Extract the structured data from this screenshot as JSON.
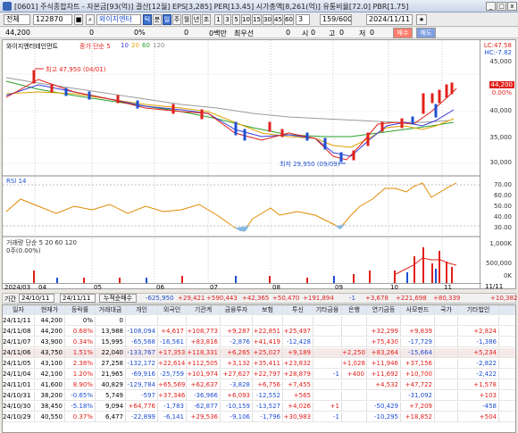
{
  "window": {
    "title": "[0601] 주식종합차트 - 자본금[93(억)] 결산[12월] EPS[3,285] PER[13.45] 시가총액[8,261(억)] 유통비율[72.0] PBR[1.75]",
    "minimize_label": "_",
    "maximize_label": "□",
    "close_label": "x"
  },
  "toolbar": {
    "market_value": "전체",
    "code_value": "122870",
    "lock_label": "■",
    "stock_name": "와이지엔터",
    "period_buttons": [
      "틱",
      "분",
      "일",
      "주",
      "월",
      "년",
      "초"
    ],
    "minute_buttons": [
      "1",
      "3",
      "5",
      "10",
      "15",
      "30",
      "45",
      "60"
    ],
    "minute_extra": "3",
    "count_value": "159/600",
    "date_value": "2024/11/11",
    "fav_label": "★"
  },
  "quote": {
    "price": "44,200",
    "change": "0",
    "change_pct": "0%",
    "volume": "0",
    "volume_unit": "0백만",
    "best_label": "최우선",
    "best_value": "0",
    "open_label": "시",
    "open_value": "0",
    "high_label": "고",
    "high_value": "0",
    "low_label": "저",
    "low_value": "0",
    "buy_label": "매수",
    "sell_label": "매도"
  },
  "chart": {
    "header_name": "와이지엔터테인먼트",
    "ma_legend": [
      "종가 단순 5",
      "10",
      "20",
      "60",
      "120"
    ],
    "ma_colors": [
      "#e0201b",
      "#3a3ad9",
      "#e0a000",
      "#2aa02a",
      "#888888"
    ],
    "high_annotation": "최고 47,950 (04/01)",
    "low_annotation": "최저 29,950 (09/09)",
    "lc_label": "LC:47.58",
    "hc_label": "HC:-7.82",
    "price_tag": "44,200",
    "price_tag2": "0.00%",
    "y_ticks": [
      "45,000",
      "40,000",
      "35,000",
      "30,000"
    ],
    "x_months": [
      "2024/03",
      "04",
      "05",
      "06",
      "07",
      "08",
      "09",
      "10",
      "11",
      "11/11"
    ],
    "rsi_label": "RSI 14",
    "rsi_ticks": [
      "70.00",
      "60.00",
      "50.00",
      "40.00",
      "30.00"
    ],
    "vol_label": "거래량 단순 5 20 60 120",
    "vol_sub": "0주(0.00%)",
    "vol_ticks": [
      "1,000K",
      "500,000",
      "0K"
    ]
  },
  "filter": {
    "period_label": "기간",
    "from_date": "24/10/11",
    "to_date": "24/11/11",
    "mode_label": "누적순매수",
    "sums": [
      "-625,950",
      "+29,421",
      "+590,443",
      "+42,365",
      "+50,470",
      "+191,894",
      "-1",
      "+3,678",
      "+221,698",
      "+80,339",
      "+10,382"
    ]
  },
  "table": {
    "headers": [
      "일자",
      "현재가",
      "등락률",
      "거래대금",
      "개인",
      "외국인",
      "기관계",
      "금융투자",
      "보험",
      "투신",
      "기타금융",
      "은행",
      "연기금등",
      "사모펀드",
      "국가",
      "기타법인"
    ],
    "rows": [
      [
        "24/11/11",
        "44,200",
        "0%",
        "0",
        "",
        "",
        "",
        "",
        "",
        "",
        "",
        "",
        "",
        "",
        "",
        ""
      ],
      [
        "24/11/08",
        "44,200",
        "0.68%",
        "13,988",
        "-108,094",
        "+4,617",
        "+108,773",
        "+9,287",
        "+22,851",
        "+25,497",
        "",
        "",
        "+32,299",
        "+9,839",
        "",
        "+2,824"
      ],
      [
        "24/11/07",
        "43,900",
        "0.34%",
        "15,995",
        "-65,568",
        "-16,561",
        "+83,816",
        "-2,876",
        "+41,419",
        "-12,428",
        "",
        "",
        "+75,430",
        "-17,729",
        "",
        "-1,386"
      ],
      [
        "24/11/06",
        "43,750",
        "1.51%",
        "22,040",
        "-133,767",
        "+17,353",
        "+118,331",
        "+6,265",
        "+25,027",
        "+9,189",
        "",
        "+2,250",
        "+83,264",
        "-15,664",
        "",
        "+5,234"
      ],
      [
        "24/11/05",
        "43,100",
        "2.38%",
        "27,258",
        "-132,172",
        "+22,614",
        "+112,505",
        "+3,132",
        "+35,411",
        "+23,832",
        "",
        "+1,028",
        "+11,946",
        "+37,156",
        "",
        "-2,822"
      ],
      [
        "24/11/04",
        "42,100",
        "1.20%",
        "21,965",
        "-69,916",
        "-25,759",
        "+101,974",
        "+27,627",
        "+22,797",
        "+28,879",
        "-1",
        "+400",
        "+11,692",
        "+10,700",
        "",
        "-2,422"
      ],
      [
        "24/11/01",
        "41,600",
        "8.90%",
        "40,829",
        "-129,784",
        "+65,569",
        "+62,637",
        "-3,828",
        "+6,756",
        "+7,455",
        "",
        "",
        "+4,532",
        "+47,722",
        "",
        "+1,578"
      ],
      [
        "24/10/31",
        "38,200",
        "-0.65%",
        "5,749",
        "-597",
        "+37,346",
        "-36,966",
        "+6,093",
        "-12,552",
        "+565",
        "",
        "",
        "",
        "-31,092",
        "",
        "+103"
      ],
      [
        "24/10/30",
        "38,450",
        "-5.18%",
        "9,094",
        "+64,776",
        "-1,783",
        "-62,877",
        "-10,159",
        "-13,527",
        "+4,026",
        "+1",
        "",
        "-50,429",
        "+7,209",
        "",
        "-458"
      ],
      [
        "24/10/29",
        "40,550",
        "0.37%",
        "6,477",
        "-22,899",
        "-6,141",
        "+29,536",
        "-9,106",
        "-1,796",
        "+30,983",
        "-1",
        "",
        "-10,295",
        "+18,852",
        "",
        "+504"
      ]
    ]
  }
}
